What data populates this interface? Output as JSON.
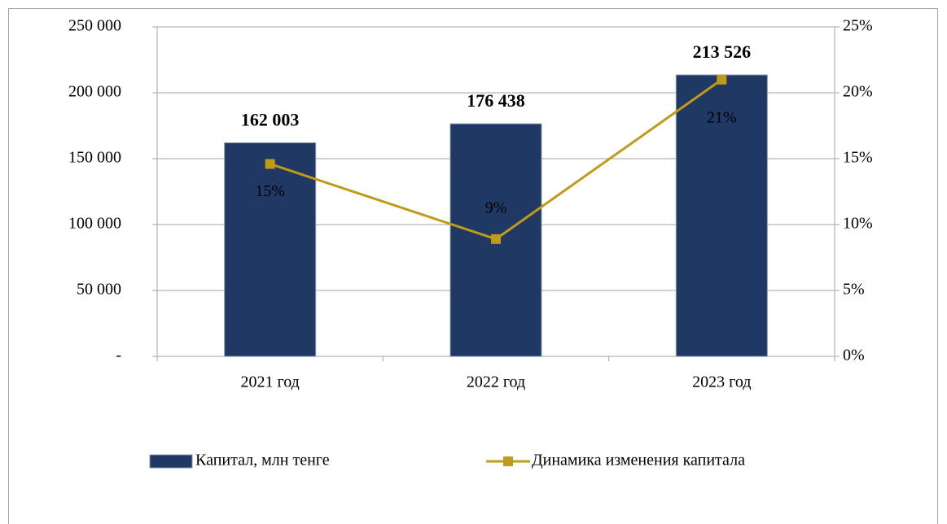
{
  "chart_data": {
    "type": "bar",
    "categories": [
      "2021 год",
      "2022 год",
      "2023 год"
    ],
    "series": [
      {
        "name": "Капитал, млн тенге",
        "type": "bar",
        "color": "#1f3864",
        "values": [
          162003,
          176438,
          213526
        ],
        "value_labels": [
          "162 003",
          "176 438",
          "213 526"
        ]
      },
      {
        "name": "Динамика изменения капитала",
        "type": "line",
        "axis": "y2",
        "color": "#bf9b18",
        "values": [
          14.6,
          8.9,
          21.0
        ],
        "value_labels": [
          "15%",
          "9%",
          "21%"
        ]
      }
    ],
    "ylim": [
      0,
      250000
    ],
    "yticks": [
      {
        "value": 0,
        "label": "-"
      },
      {
        "value": 50000,
        "label": "50 000"
      },
      {
        "value": 100000,
        "label": "100 000"
      },
      {
        "value": 150000,
        "label": "150 000"
      },
      {
        "value": 200000,
        "label": "200 000"
      },
      {
        "value": 250000,
        "label": "250 000"
      }
    ],
    "y2lim": [
      0,
      25
    ],
    "y2ticks": [
      {
        "value": 0,
        "label": "0%"
      },
      {
        "value": 5,
        "label": "5%"
      },
      {
        "value": 10,
        "label": "10%"
      },
      {
        "value": 15,
        "label": "15%"
      },
      {
        "value": 20,
        "label": "20%"
      },
      {
        "value": 25,
        "label": "25%"
      }
    ],
    "grid": true,
    "legend": "bottom"
  }
}
